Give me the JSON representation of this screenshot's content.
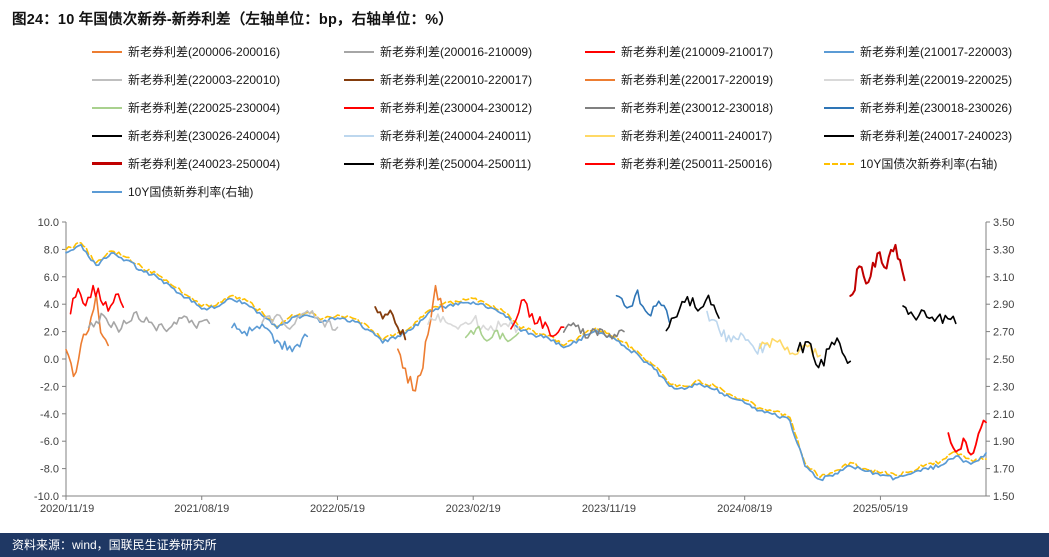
{
  "header": {
    "title": "图24：10 年国债次新券-新券利差（左轴单位：bp，右轴单位：%）"
  },
  "footer": {
    "source": "资料来源：wind，国联民生证券研究所"
  },
  "chart_data": {
    "type": "line",
    "title": "10 年国债次新券-新券利差",
    "left_axis": {
      "unit": "bp",
      "min": -10,
      "max": 10,
      "ticks": [
        "10.0",
        "8.0",
        "6.0",
        "4.0",
        "2.0",
        "0.0",
        "-2.0",
        "-4.0",
        "-6.0",
        "-8.0",
        "-10.0"
      ]
    },
    "right_axis": {
      "unit": "%",
      "min": 1.5,
      "max": 3.5,
      "ticks": [
        "3.50",
        "3.30",
        "3.10",
        "2.90",
        "2.70",
        "2.50",
        "2.30",
        "2.10",
        "1.90",
        "1.70",
        "1.50"
      ]
    },
    "x_axis": {
      "min": 0,
      "max": 61,
      "tick_positions": [
        0,
        9,
        18,
        27,
        36,
        45,
        54
      ],
      "tick_labels": [
        "2020/11/19",
        "2021/08/19",
        "2022/05/19",
        "2023/02/19",
        "2023/11/19",
        "2024/08/19",
        "2025/05/19"
      ]
    },
    "series": [
      {
        "name": "新老券利差(200006-200016)",
        "color": "#ED7D31",
        "axis": "left",
        "width": 1.6,
        "noise": 0.45,
        "x": [
          0,
          0.5,
          1,
          1.5,
          2,
          2.3,
          2.8
        ],
        "y": [
          0.8,
          -1.4,
          1.2,
          2.2,
          4.6,
          2.0,
          1.1
        ]
      },
      {
        "name": "新老券利差(200016-210009)",
        "color": "#A6A6A6",
        "axis": "left",
        "width": 1.6,
        "noise": 0.4,
        "x": [
          1.5,
          2.5,
          3.5,
          4.5,
          5.5,
          6.5,
          7.5,
          8.5,
          9.5
        ],
        "y": [
          2.4,
          3.2,
          2.0,
          3.4,
          2.6,
          2.2,
          3.0,
          2.4,
          2.7
        ]
      },
      {
        "name": "新老券利差(210009-210017)",
        "color": "#FF0000",
        "axis": "left",
        "width": 1.6,
        "noise": 0.5,
        "x": [
          0.3,
          0.8,
          1.3,
          1.8,
          2.3,
          2.8,
          3.3,
          3.8
        ],
        "y": [
          3.4,
          5.2,
          4.0,
          5.4,
          4.4,
          3.6,
          4.6,
          3.8
        ]
      },
      {
        "name": "新老券利差(210017-220003)",
        "color": "#5B9BD5",
        "axis": "left",
        "width": 1.6,
        "noise": 0.4,
        "x": [
          11,
          12,
          13,
          14,
          15,
          16
        ],
        "y": [
          2.3,
          1.8,
          2.5,
          1.3,
          0.5,
          1.6
        ]
      },
      {
        "name": "新老券利差(220003-220010)",
        "color": "#BFBFBF",
        "axis": "left",
        "width": 1.6,
        "noise": 0.4,
        "x": [
          13,
          14,
          15,
          16,
          17,
          18
        ],
        "y": [
          2.6,
          3.2,
          2.4,
          3.6,
          2.8,
          2.2
        ]
      },
      {
        "name": "新老券利差(220010-220017)",
        "color": "#843C0C",
        "axis": "left",
        "width": 1.8,
        "noise": 0.4,
        "x": [
          20.5,
          21,
          21.5,
          22,
          22.5
        ],
        "y": [
          3.9,
          3.0,
          3.5,
          2.2,
          1.5
        ]
      },
      {
        "name": "新老券利差(220017-220019)",
        "color": "#ED7D31",
        "axis": "left",
        "width": 1.6,
        "noise": 0.5,
        "x": [
          22,
          22.5,
          23,
          23.5,
          24,
          24.5,
          25
        ],
        "y": [
          0.8,
          -0.8,
          -2.2,
          -1.2,
          1.8,
          5.4,
          3.6
        ]
      },
      {
        "name": "新老券利差(220019-220025)",
        "color": "#D9D9D9",
        "axis": "left",
        "width": 1.6,
        "noise": 0.4,
        "x": [
          24,
          25,
          26,
          27,
          28,
          29,
          30
        ],
        "y": [
          2.6,
          3.1,
          2.2,
          2.9,
          2.1,
          2.6,
          2.2
        ]
      },
      {
        "name": "新老券利差(220025-230004)",
        "color": "#A9D18E",
        "axis": "left",
        "width": 1.6,
        "noise": 0.35,
        "x": [
          26.5,
          27.2,
          27.9,
          28.6,
          29.3,
          30
        ],
        "y": [
          1.6,
          2.3,
          1.4,
          2.0,
          1.2,
          1.8
        ]
      },
      {
        "name": "新老券利差(230004-230012)",
        "color": "#FF0000",
        "axis": "left",
        "width": 1.6,
        "noise": 0.5,
        "x": [
          29.5,
          30.2,
          30.9,
          31.6,
          32.3,
          33
        ],
        "y": [
          2.2,
          4.2,
          3.2,
          2.4,
          1.8,
          2.3
        ]
      },
      {
        "name": "新老券利差(230012-230018)",
        "color": "#808080",
        "axis": "left",
        "width": 1.6,
        "noise": 0.4,
        "x": [
          33,
          33.8,
          34.6,
          35.4,
          36.2,
          37
        ],
        "y": [
          2.0,
          2.5,
          1.6,
          2.2,
          1.4,
          1.9
        ]
      },
      {
        "name": "新老券利差(230018-230026)",
        "color": "#2E75B6",
        "axis": "left",
        "width": 1.6,
        "noise": 0.5,
        "x": [
          36.5,
          37.2,
          37.9,
          38.6,
          39.3,
          40
        ],
        "y": [
          4.6,
          3.8,
          4.9,
          3.4,
          4.2,
          2.8
        ]
      },
      {
        "name": "新老券利差(230026-240004)",
        "color": "#000000",
        "axis": "left",
        "width": 1.6,
        "noise": 0.5,
        "x": [
          39.8,
          40.5,
          41.2,
          41.9,
          42.6,
          43.3
        ],
        "y": [
          2.0,
          3.2,
          4.4,
          3.6,
          4.6,
          3.0
        ]
      },
      {
        "name": "新老券利差(240004-240011)",
        "color": "#BDD7EE",
        "axis": "left",
        "width": 1.6,
        "noise": 0.4,
        "x": [
          42.5,
          43.3,
          44.1,
          44.9,
          45.7,
          46.5
        ],
        "y": [
          3.4,
          2.2,
          1.2,
          1.8,
          0.6,
          1.0
        ]
      },
      {
        "name": "新老券利差(240011-240017)",
        "color": "#FFD966",
        "axis": "left",
        "width": 1.6,
        "noise": 0.35,
        "x": [
          46,
          47,
          48,
          49,
          50
        ],
        "y": [
          0.8,
          1.4,
          0.4,
          1.0,
          0.2
        ]
      },
      {
        "name": "新老券利差(240017-240023)",
        "color": "#000000",
        "axis": "left",
        "width": 1.6,
        "noise": 0.5,
        "x": [
          48.5,
          49.2,
          49.9,
          50.6,
          51.3,
          52
        ],
        "y": [
          0.5,
          1.4,
          -0.7,
          0.6,
          1.2,
          -0.3
        ]
      },
      {
        "name": "新老券利差(240023-250004)",
        "color": "#C00000",
        "axis": "left",
        "width": 2,
        "noise": 0.6,
        "x": [
          52,
          52.6,
          53.2,
          53.8,
          54.4,
          55,
          55.6
        ],
        "y": [
          4.6,
          6.6,
          5.6,
          7.8,
          6.6,
          8.2,
          5.8
        ]
      },
      {
        "name": "新老券利差(250004-250011)",
        "color": "#000000",
        "axis": "left",
        "width": 1.6,
        "noise": 0.45,
        "x": [
          55.5,
          56.2,
          56.9,
          57.6,
          58.3,
          59
        ],
        "y": [
          4.0,
          3.2,
          3.6,
          2.8,
          3.1,
          2.6
        ]
      },
      {
        "name": "新老券利差(250011-250016)",
        "color": "#FF0000",
        "axis": "left",
        "width": 1.8,
        "noise": 0.6,
        "x": [
          58.5,
          59,
          59.5,
          60,
          60.5,
          61
        ],
        "y": [
          -5.4,
          -6.6,
          -5.8,
          -7.0,
          -5.6,
          -4.8
        ]
      },
      {
        "name": "10Y国债次新券利率(右轴)",
        "color": "#FFC000",
        "axis": "right",
        "dash": true,
        "width": 1.6,
        "noise": 0.015,
        "x_range": [
          0,
          61
        ],
        "y": [
          3.3,
          3.35,
          3.2,
          3.29,
          3.24,
          3.17,
          3.12,
          3.04,
          2.97,
          2.89,
          2.9,
          2.96,
          2.92,
          2.84,
          2.74,
          2.82,
          2.84,
          2.79,
          2.82,
          2.8,
          2.74,
          2.64,
          2.69,
          2.74,
          2.85,
          2.9,
          2.92,
          2.94,
          2.89,
          2.85,
          2.74,
          2.7,
          2.67,
          2.6,
          2.66,
          2.72,
          2.69,
          2.62,
          2.54,
          2.45,
          2.32,
          2.3,
          2.34,
          2.3,
          2.24,
          2.2,
          2.14,
          2.12,
          2.07,
          1.74,
          1.64,
          1.68,
          1.74,
          1.7,
          1.67,
          1.65,
          1.68,
          1.73,
          1.75,
          1.82,
          1.76,
          1.77
        ]
      },
      {
        "name": "10Y国债新券利率(右轴)",
        "color": "#5B9BD5",
        "axis": "right",
        "width": 1.7,
        "noise": 0.015,
        "x_range": [
          0,
          61
        ],
        "y": [
          3.28,
          3.33,
          3.18,
          3.27,
          3.22,
          3.15,
          3.1,
          3.02,
          2.95,
          2.87,
          2.88,
          2.94,
          2.9,
          2.82,
          2.72,
          2.8,
          2.82,
          2.77,
          2.8,
          2.78,
          2.72,
          2.62,
          2.67,
          2.72,
          2.83,
          2.88,
          2.9,
          2.92,
          2.87,
          2.83,
          2.72,
          2.68,
          2.65,
          2.58,
          2.64,
          2.7,
          2.67,
          2.6,
          2.52,
          2.43,
          2.3,
          2.28,
          2.32,
          2.28,
          2.22,
          2.18,
          2.12,
          2.1,
          2.05,
          1.72,
          1.62,
          1.66,
          1.72,
          1.68,
          1.65,
          1.63,
          1.66,
          1.7,
          1.72,
          1.79,
          1.73,
          1.81
        ]
      }
    ]
  }
}
